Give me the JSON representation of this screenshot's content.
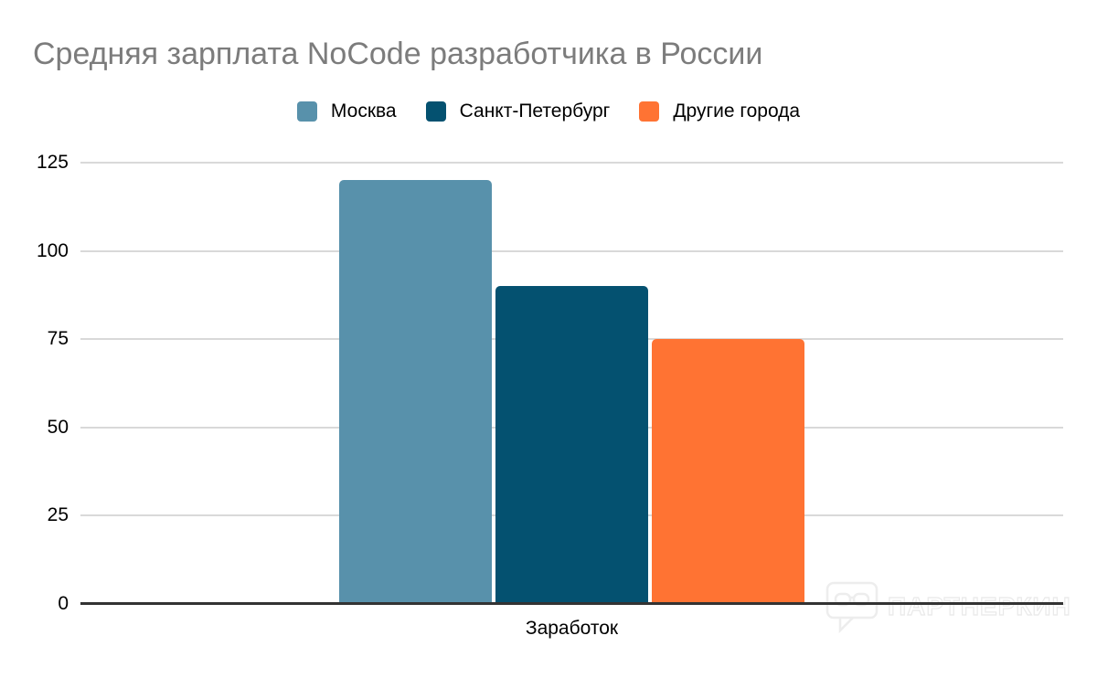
{
  "chart_data": {
    "type": "bar",
    "title": "Средняя зарплата NoCode разработчика в России",
    "categories": [
      "Заработок"
    ],
    "series": [
      {
        "name": "Москва",
        "values": [
          120
        ],
        "color": "#5891AB"
      },
      {
        "name": "Санкт-Петербург",
        "values": [
          90
        ],
        "color": "#045170"
      },
      {
        "name": "Другие города",
        "values": [
          75
        ],
        "color": "#FF7333"
      }
    ],
    "xlabel": "Заработок",
    "ylabel": "",
    "ylim": [
      0,
      125
    ],
    "yticks": [
      0,
      25,
      50,
      75,
      100,
      125
    ],
    "grid": true,
    "legend_position": "top"
  },
  "colors": {
    "title_text": "#7c7c7c",
    "tick_text": "#000000",
    "gridline": "#d9d9d9",
    "axis_line": "#333333",
    "background": "#ffffff",
    "watermark_outline": "#e9e9e9"
  },
  "watermark": {
    "text": "ПАРТНЕРКИН",
    "icon": "speech-bubble-glasses-icon"
  }
}
